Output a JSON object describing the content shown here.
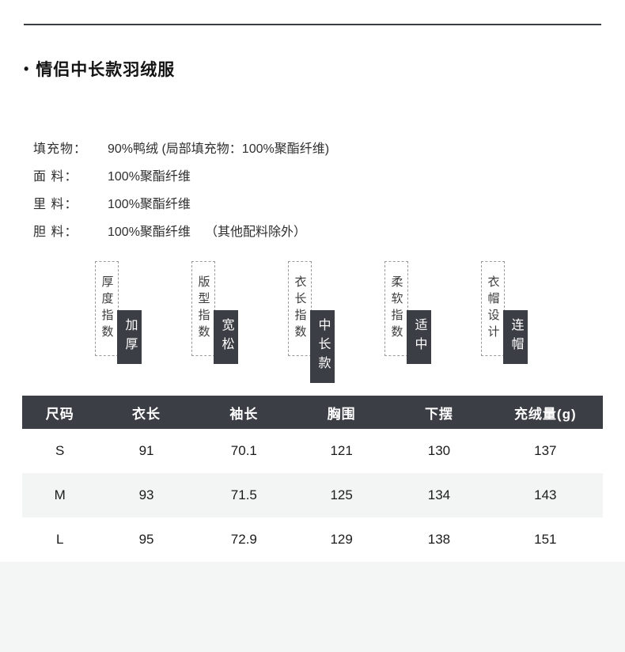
{
  "header": {
    "bullet": "•",
    "title": "情侣中长款羽绒服"
  },
  "materials": [
    {
      "label": "填充物：",
      "value": "90%鸭绒 (局部填充物：100%聚酯纤维)",
      "note": ""
    },
    {
      "label": "面 料：",
      "value": "100%聚酯纤维",
      "note": ""
    },
    {
      "label": "里 料：",
      "value": "100%聚酯纤维",
      "note": ""
    },
    {
      "label": "胆 料：",
      "value": "100%聚酯纤维",
      "note": "（其他配料除外）"
    }
  ],
  "attributes": [
    {
      "label": "厚度指数",
      "value": "加厚"
    },
    {
      "label": "版型指数",
      "value": "宽松"
    },
    {
      "label": "衣长指数",
      "value": "中长款"
    },
    {
      "label": "柔软指数",
      "value": "适中"
    },
    {
      "label": "衣帽设计",
      "value": "连帽"
    }
  ],
  "size_table": {
    "headers": [
      "尺码",
      "衣长",
      "袖长",
      "胸围",
      "下摆",
      "充绒量(g)"
    ],
    "rows": [
      [
        "S",
        "91",
        "70.1",
        "121",
        "130",
        "137"
      ],
      [
        "M",
        "93",
        "71.5",
        "125",
        "134",
        "143"
      ],
      [
        "L",
        "95",
        "72.9",
        "129",
        "138",
        "151"
      ]
    ]
  },
  "colors": {
    "accent_dark": "#3b3e44",
    "row_stripe": "#f3f4f4",
    "dashed_border": "#9a9a9a",
    "text_dark": "#1c1c1c"
  }
}
